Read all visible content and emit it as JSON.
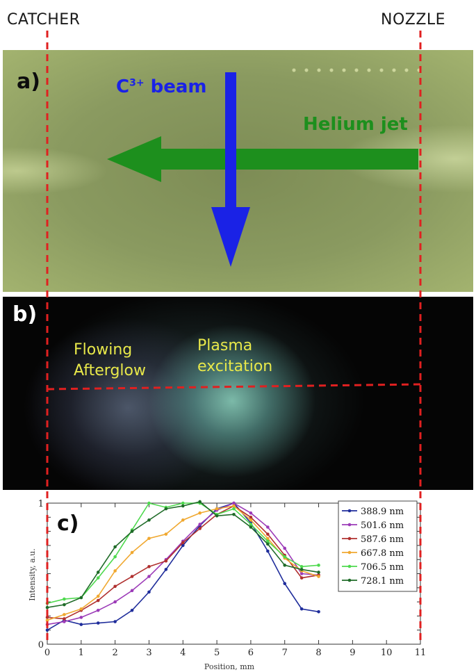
{
  "labels": {
    "catcher": "CATCHER",
    "nozzle": "NOZZLE"
  },
  "panel_a": {
    "letter": "a)",
    "beam_label": "C",
    "beam_charge": "3+",
    "beam_word": " beam",
    "jet_label": "Helium jet"
  },
  "panel_b": {
    "letter": "b)",
    "flowing_line1": "Flowing",
    "flowing_line2": "Afterglow",
    "plasma_line1": "Plasma",
    "plasma_line2": "excitation"
  },
  "colors": {
    "beam": "#1a22e6",
    "jet": "#1d8f1d",
    "guide": "#e02020",
    "overlay_text": "#e8e84a"
  },
  "chart_data": {
    "type": "line",
    "panel_letter": "c)",
    "xlabel": "Position, mm",
    "ylabel": "Intensity, a.u.",
    "xlim": [
      0,
      11
    ],
    "ylim": [
      0,
      1
    ],
    "x_ticks": [
      0,
      1,
      2,
      3,
      4,
      5,
      6,
      7,
      8,
      9,
      10,
      11
    ],
    "y_ticks": [
      0,
      1
    ],
    "legend_position": "top-right",
    "x": [
      0,
      0.5,
      1,
      1.5,
      2,
      2.5,
      3,
      3.5,
      4,
      4.5,
      5,
      5.5,
      6,
      6.5,
      7,
      7.5,
      8
    ],
    "series": [
      {
        "name": "388.9 nm",
        "color": "#1f2d9b",
        "values": [
          0.1,
          0.17,
          0.14,
          0.15,
          0.16,
          0.24,
          0.37,
          0.53,
          0.7,
          0.84,
          0.96,
          1.0,
          0.86,
          0.66,
          0.43,
          0.25,
          0.23
        ]
      },
      {
        "name": "501.6 nm",
        "color": "#9c3bb8",
        "values": [
          0.14,
          0.16,
          0.19,
          0.24,
          0.3,
          0.38,
          0.48,
          0.6,
          0.73,
          0.85,
          0.95,
          1.0,
          0.93,
          0.83,
          0.68,
          0.5,
          0.49
        ]
      },
      {
        "name": "587.6 nm",
        "color": "#b0302f",
        "values": [
          0.19,
          0.18,
          0.24,
          0.31,
          0.41,
          0.48,
          0.55,
          0.59,
          0.72,
          0.82,
          0.92,
          0.98,
          0.9,
          0.78,
          0.63,
          0.47,
          0.49
        ]
      },
      {
        "name": "667.8 nm",
        "color": "#f0a830",
        "values": [
          0.17,
          0.21,
          0.25,
          0.34,
          0.52,
          0.65,
          0.75,
          0.78,
          0.88,
          0.93,
          0.96,
          0.98,
          0.88,
          0.75,
          0.61,
          0.52,
          0.48
        ]
      },
      {
        "name": "706.5 nm",
        "color": "#4ed94e",
        "values": [
          0.29,
          0.32,
          0.33,
          0.47,
          0.62,
          0.81,
          1.0,
          0.97,
          1.0,
          1.0,
          0.92,
          0.96,
          0.85,
          0.73,
          0.62,
          0.55,
          0.56
        ]
      },
      {
        "name": "728.1 nm",
        "color": "#1f6b28",
        "values": [
          0.26,
          0.28,
          0.33,
          0.51,
          0.69,
          0.8,
          0.88,
          0.96,
          0.98,
          1.01,
          0.91,
          0.92,
          0.83,
          0.71,
          0.56,
          0.53,
          0.51
        ]
      }
    ]
  }
}
